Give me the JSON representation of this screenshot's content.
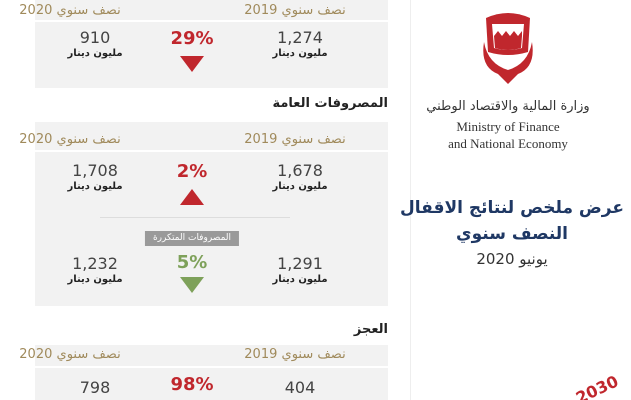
{
  "revenue": {
    "current_period": "نصف سنوي 2020",
    "previous_period": "نصف سنوي 2019",
    "current_value": "910",
    "current_unit": "مليون دينار",
    "change": "29%",
    "direction": "down",
    "color": "#c0272d",
    "previous_value": "1,274",
    "previous_unit": "مليون دينار"
  },
  "expenditure": {
    "title": "المصروفات العامة",
    "current_period": "نصف سنوي 2020",
    "previous_period": "نصف سنوي 2019",
    "current_value": "1,708",
    "current_unit": "مليون دينار",
    "change": "2%",
    "direction": "up",
    "color": "#c0272d",
    "previous_value": "1,678",
    "previous_unit": "مليون دينار",
    "recurrent": {
      "title": "المصروفات المتكررة",
      "current_value": "1,232",
      "current_unit": "مليون دينار",
      "change": "5%",
      "direction": "down",
      "color": "#7ea15a",
      "previous_value": "1,291",
      "previous_unit": "مليون دينار"
    }
  },
  "deficit": {
    "title": "العجز",
    "current_period": "نصف سنوي 2020",
    "previous_period": "نصف سنوي 2019",
    "current_value": "798",
    "change": "98%",
    "color": "#c0272d",
    "previous_value": "404"
  },
  "header": {
    "ministry_ar": "وزارة المالية والاقتصاد الوطني",
    "ministry_en_1": "Ministry of Finance",
    "ministry_en_2": "and National Economy",
    "title_1": "عرض ملخص لنتائج الاقفال",
    "title_2": "النصف سنوي",
    "date": "يونيو 2020",
    "vision": "2030"
  }
}
